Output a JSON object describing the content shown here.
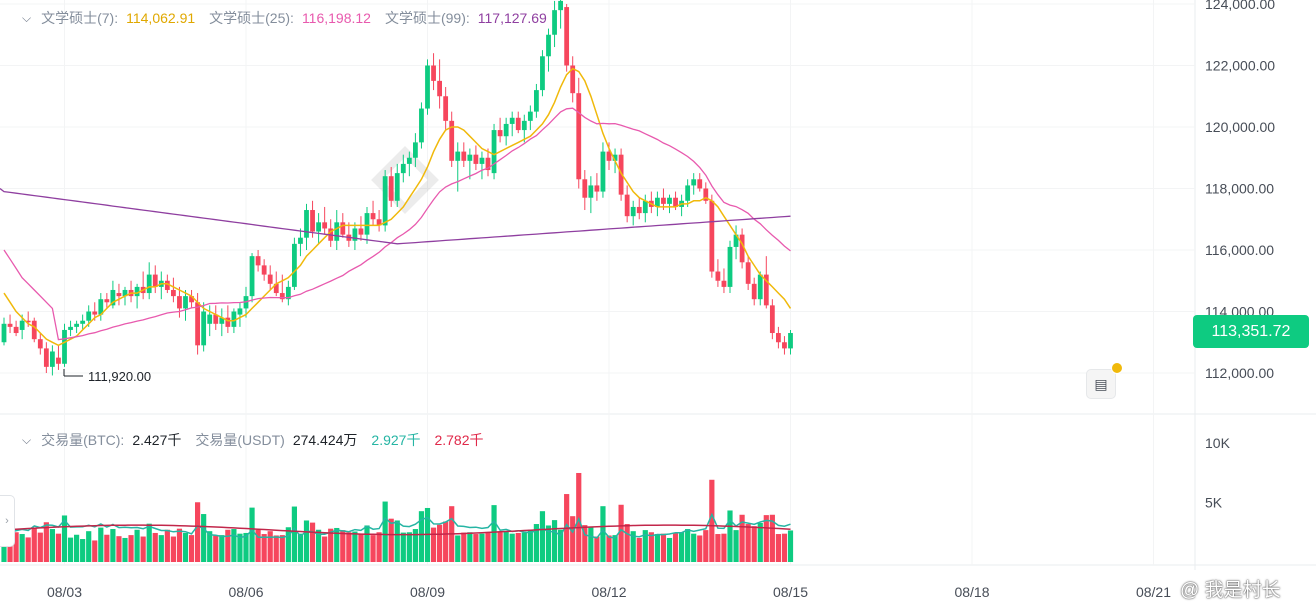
{
  "ma_legend": {
    "items": [
      {
        "label": "文学硕士(7):",
        "value": "114,062.91",
        "color": "#f0b90b"
      },
      {
        "label": "文学硕士(25):",
        "value": "116,198.12",
        "color": "#e85aae"
      },
      {
        "label": "文学硕士(99):",
        "value": "117,127.69",
        "color": "#8f3fa0"
      }
    ]
  },
  "volume_legend": {
    "items": [
      {
        "label": "交易量(BTC):",
        "value": "2.427千",
        "color": "#1e2329"
      },
      {
        "label": "交易量(USDT)",
        "value": "274.424万",
        "color": "#1e2329"
      },
      {
        "label": "",
        "value": "2.927千",
        "color": "#26b5a4"
      },
      {
        "label": "",
        "value": "2.782千",
        "color": "#e0294a"
      }
    ]
  },
  "current_price": "113,351.72",
  "low_marker": "111,920.00",
  "watermark": "@ 我是村长",
  "colors": {
    "up": "#0ecb81",
    "down": "#f6465d",
    "grid": "#f0f1f2"
  },
  "chart_data": {
    "type": "candlestick",
    "price_axis": {
      "ticks": [
        112000,
        114000,
        116000,
        118000,
        120000,
        122000,
        124000
      ],
      "tick_labels": [
        "112,000.00",
        "114,000.00",
        "116,000.00",
        "118,000.00",
        "120,000.00",
        "122,000.00",
        "124,000.00"
      ]
    },
    "volume_axis": {
      "ticks": [
        5000,
        10000
      ],
      "tick_labels": [
        "5K",
        "10K"
      ]
    },
    "x_axis": {
      "labels": [
        "08/03",
        "08/06",
        "08/09",
        "08/12",
        "08/15",
        "08/18",
        "08/21"
      ],
      "label_index": [
        10,
        40,
        70,
        100,
        130,
        160,
        190
      ]
    },
    "candles": [
      [
        113000,
        113800,
        112900,
        113600,
        "up"
      ],
      [
        113600,
        113900,
        113300,
        113500,
        "down"
      ],
      [
        113500,
        113700,
        113200,
        113300,
        "down"
      ],
      [
        113400,
        113900,
        113100,
        113700,
        "up"
      ],
      [
        113700,
        114000,
        113500,
        113650,
        "down"
      ],
      [
        113700,
        113800,
        113000,
        113100,
        "down"
      ],
      [
        113100,
        113300,
        112600,
        112800,
        "down"
      ],
      [
        112800,
        113000,
        112000,
        112200,
        "down"
      ],
      [
        112200,
        112900,
        111920,
        112700,
        "up"
      ],
      [
        112500,
        112900,
        112100,
        112300,
        "down"
      ],
      [
        112300,
        113600,
        112200,
        113400,
        "up"
      ],
      [
        113400,
        113700,
        113200,
        113500,
        "up"
      ],
      [
        113500,
        113700,
        113300,
        113600,
        "up"
      ],
      [
        113600,
        113900,
        113400,
        113700,
        "up"
      ],
      [
        113700,
        114200,
        113500,
        114000,
        "up"
      ],
      [
        114000,
        114300,
        113700,
        113900,
        "down"
      ],
      [
        113900,
        114600,
        113700,
        114400,
        "up"
      ],
      [
        114400,
        114600,
        114100,
        114300,
        "down"
      ],
      [
        114200,
        115000,
        114100,
        114700,
        "up"
      ],
      [
        114600,
        114900,
        114200,
        114500,
        "down"
      ],
      [
        114500,
        114800,
        114200,
        114700,
        "up"
      ],
      [
        114700,
        115000,
        114300,
        114500,
        "down"
      ],
      [
        114500,
        114900,
        114100,
        114800,
        "up"
      ],
      [
        114800,
        115300,
        114400,
        114600,
        "down"
      ],
      [
        114600,
        115600,
        114400,
        115200,
        "up"
      ],
      [
        115200,
        115500,
        114600,
        114800,
        "down"
      ],
      [
        114800,
        115300,
        114400,
        115000,
        "up"
      ],
      [
        115000,
        115200,
        114600,
        114700,
        "down"
      ],
      [
        114700,
        115100,
        114300,
        114500,
        "down"
      ],
      [
        114500,
        114800,
        113800,
        114100,
        "down"
      ],
      [
        114100,
        114700,
        113700,
        114500,
        "up"
      ],
      [
        114500,
        114700,
        114100,
        114300,
        "down"
      ],
      [
        114300,
        114600,
        112600,
        112900,
        "down"
      ],
      [
        112900,
        114300,
        112700,
        114000,
        "up"
      ],
      [
        113600,
        114200,
        113200,
        113900,
        "up"
      ],
      [
        113900,
        114200,
        113400,
        113600,
        "down"
      ],
      [
        113600,
        114100,
        113200,
        113800,
        "up"
      ],
      [
        113800,
        114200,
        113300,
        113500,
        "down"
      ],
      [
        113500,
        114100,
        113300,
        114000,
        "up"
      ],
      [
        113900,
        114300,
        113500,
        114100,
        "up"
      ],
      [
        114100,
        114800,
        113800,
        114500,
        "up"
      ],
      [
        114500,
        115900,
        114300,
        115800,
        "up"
      ],
      [
        115800,
        116000,
        115300,
        115500,
        "down"
      ],
      [
        115500,
        115700,
        115000,
        115200,
        "down"
      ],
      [
        115200,
        115500,
        114700,
        114900,
        "down"
      ],
      [
        114900,
        115300,
        114500,
        114600,
        "down"
      ],
      [
        114600,
        115200,
        114300,
        114400,
        "down"
      ],
      [
        114400,
        115000,
        114200,
        114800,
        "up"
      ],
      [
        114800,
        116400,
        114700,
        116200,
        "up"
      ],
      [
        116200,
        116700,
        115800,
        116400,
        "up"
      ],
      [
        116400,
        117500,
        116000,
        117300,
        "up"
      ],
      [
        117300,
        117600,
        116400,
        116600,
        "down"
      ],
      [
        116600,
        117200,
        116200,
        116900,
        "up"
      ],
      [
        116900,
        117400,
        116500,
        116700,
        "down"
      ],
      [
        116700,
        117000,
        116100,
        116300,
        "down"
      ],
      [
        116300,
        117300,
        116000,
        116900,
        "up"
      ],
      [
        116900,
        117200,
        116400,
        116500,
        "down"
      ],
      [
        116500,
        116900,
        116100,
        116300,
        "down"
      ],
      [
        116300,
        116900,
        116000,
        116700,
        "up"
      ],
      [
        116700,
        117100,
        116300,
        116500,
        "down"
      ],
      [
        116500,
        117400,
        116200,
        117200,
        "up"
      ],
      [
        117200,
        117600,
        116800,
        117000,
        "down"
      ],
      [
        117000,
        117300,
        116600,
        116800,
        "down"
      ],
      [
        116800,
        118600,
        116600,
        118400,
        "up"
      ],
      [
        118400,
        118700,
        117400,
        117600,
        "down"
      ],
      [
        117600,
        118800,
        117400,
        118500,
        "up"
      ],
      [
        118500,
        119100,
        118200,
        118800,
        "up"
      ],
      [
        118800,
        119200,
        118400,
        119000,
        "up"
      ],
      [
        119000,
        119800,
        118700,
        119500,
        "up"
      ],
      [
        119500,
        120800,
        119300,
        120600,
        "up"
      ],
      [
        120600,
        122200,
        120400,
        122000,
        "up"
      ],
      [
        122000,
        122400,
        121200,
        121500,
        "down"
      ],
      [
        121500,
        122200,
        120600,
        121000,
        "down"
      ],
      [
        121000,
        121300,
        119900,
        120200,
        "down"
      ],
      [
        120200,
        120500,
        118700,
        118900,
        "down"
      ],
      [
        118900,
        119500,
        117900,
        119200,
        "up"
      ],
      [
        119200,
        119500,
        118700,
        118900,
        "down"
      ],
      [
        118900,
        119300,
        118300,
        119100,
        "up"
      ],
      [
        119100,
        119400,
        118600,
        118800,
        "down"
      ],
      [
        118800,
        119200,
        118300,
        119000,
        "up"
      ],
      [
        119000,
        119300,
        118400,
        118600,
        "down"
      ],
      [
        118500,
        120100,
        118300,
        119900,
        "up"
      ],
      [
        119900,
        120300,
        119500,
        119700,
        "down"
      ],
      [
        119700,
        120300,
        119400,
        120100,
        "up"
      ],
      [
        120100,
        120500,
        119700,
        120300,
        "up"
      ],
      [
        120300,
        120500,
        119800,
        119900,
        "down"
      ],
      [
        119900,
        120400,
        119500,
        120200,
        "up"
      ],
      [
        120200,
        120700,
        119900,
        120500,
        "up"
      ],
      [
        120500,
        121400,
        120300,
        121200,
        "up"
      ],
      [
        121200,
        122500,
        121000,
        122300,
        "up"
      ],
      [
        122300,
        123200,
        121800,
        123000,
        "up"
      ],
      [
        123000,
        124100,
        122600,
        123800,
        "up"
      ],
      [
        123800,
        124300,
        123200,
        124100,
        "up"
      ],
      [
        123900,
        124000,
        121800,
        122000,
        "down"
      ],
      [
        122000,
        122300,
        120800,
        121100,
        "down"
      ],
      [
        121100,
        121600,
        118000,
        118300,
        "down"
      ],
      [
        118300,
        118600,
        117300,
        117700,
        "down"
      ],
      [
        117700,
        118400,
        117200,
        118100,
        "up"
      ],
      [
        118100,
        118500,
        117600,
        117900,
        "down"
      ],
      [
        117900,
        119500,
        117700,
        119200,
        "up"
      ],
      [
        119200,
        119500,
        118600,
        118900,
        "down"
      ],
      [
        118900,
        119300,
        118500,
        119100,
        "up"
      ],
      [
        119100,
        119300,
        117600,
        117800,
        "down"
      ],
      [
        117800,
        118100,
        116900,
        117100,
        "down"
      ],
      [
        117100,
        117600,
        116800,
        117400,
        "up"
      ],
      [
        117400,
        117700,
        117000,
        117200,
        "down"
      ],
      [
        117200,
        117800,
        116900,
        117600,
        "up"
      ],
      [
        117600,
        117900,
        117200,
        117400,
        "down"
      ],
      [
        117400,
        117900,
        117100,
        117700,
        "up"
      ],
      [
        117700,
        118000,
        117300,
        117500,
        "down"
      ],
      [
        117500,
        117800,
        117200,
        117700,
        "up"
      ],
      [
        117700,
        117900,
        117300,
        117400,
        "down"
      ],
      [
        117400,
        117800,
        117100,
        117600,
        "up"
      ],
      [
        117600,
        118300,
        117400,
        118100,
        "up"
      ],
      [
        118100,
        118500,
        117800,
        118300,
        "up"
      ],
      [
        118300,
        118500,
        117900,
        118000,
        "down"
      ],
      [
        118000,
        118200,
        117500,
        117600,
        "down"
      ],
      [
        117600,
        117800,
        115100,
        115300,
        "down"
      ],
      [
        115300,
        115700,
        114800,
        115000,
        "down"
      ],
      [
        115000,
        115400,
        114600,
        114800,
        "down"
      ],
      [
        114800,
        116300,
        114600,
        116100,
        "up"
      ],
      [
        116100,
        116800,
        115700,
        116500,
        "up"
      ],
      [
        116500,
        116700,
        115400,
        115600,
        "down"
      ],
      [
        115600,
        115800,
        114700,
        114900,
        "down"
      ],
      [
        114900,
        115100,
        114200,
        114400,
        "down"
      ],
      [
        114400,
        115300,
        114200,
        115200,
        "up"
      ],
      [
        115200,
        115800,
        114100,
        114200,
        "down"
      ],
      [
        114200,
        114400,
        113100,
        113300,
        "down"
      ],
      [
        113300,
        113500,
        112800,
        113000,
        "down"
      ],
      [
        113000,
        113200,
        112600,
        112800,
        "down"
      ],
      [
        112800,
        113400,
        112600,
        113300,
        "up"
      ]
    ],
    "ma7": [
      114600,
      114300,
      114000,
      113800,
      113600,
      113500,
      113300,
      113100,
      113000,
      112900,
      113000,
      113100,
      113200,
      113400,
      113600,
      113800,
      113900,
      114100,
      114300,
      114400,
      114500,
      114600,
      114600,
      114700,
      114800,
      114800,
      114900,
      114900,
      114800,
      114700,
      114600,
      114500,
      114300,
      114100,
      114000,
      113900,
      113800,
      113700,
      113700,
      113800,
      113900,
      114100,
      114300,
      114500,
      114700,
      114900,
      115000,
      115100,
      115300,
      115500,
      115800,
      116000,
      116200,
      116400,
      116600,
      116700,
      116800,
      116800,
      116800,
      116800,
      116800,
      116800,
      116800,
      116900,
      117000,
      117200,
      117400,
      117700,
      118000,
      118300,
      118700,
      119200,
      119600,
      119900,
      120000,
      120000,
      119900,
      119700,
      119500,
      119300,
      119200,
      119100,
      119200,
      119300,
      119400,
      119500,
      119600,
      119700,
      119900,
      120100,
      120400,
      120800,
      121300,
      121700,
      121900,
      121800,
      121500,
      121000,
      120400,
      119800,
      119300,
      118900,
      118500,
      118200,
      117900,
      117700,
      117600,
      117500,
      117400,
      117400,
      117400,
      117400,
      117500,
      117500,
      117600,
      117600,
      117700,
      117600,
      117400,
      117100,
      116800,
      116500,
      116200,
      115800,
      115500,
      115200,
      115000,
      114800,
      114600,
      114400,
      114100
    ]
  }
}
